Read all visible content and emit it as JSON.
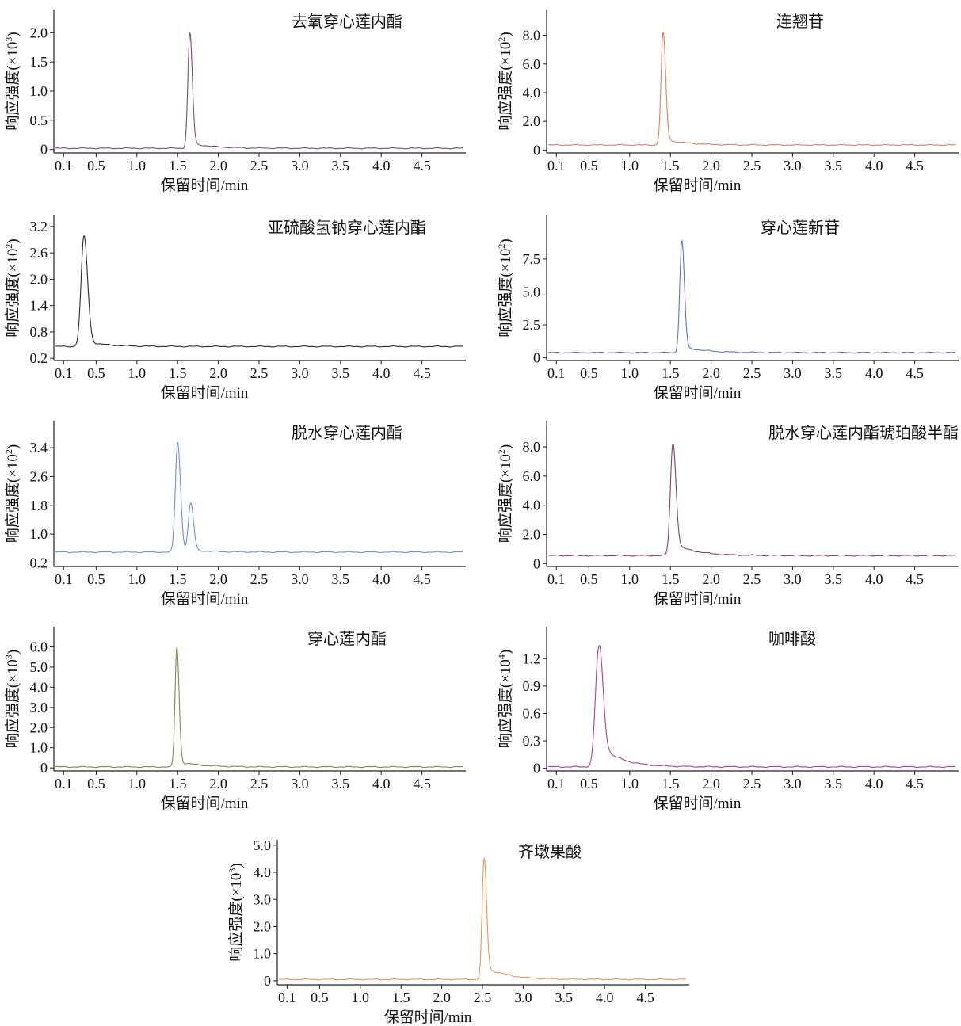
{
  "x_axis_label": "保留时间/min",
  "x_ticks": [
    0.1,
    0.5,
    1.0,
    1.5,
    2.0,
    2.5,
    3.0,
    3.5,
    4.0,
    4.5
  ],
  "x_tick_labels": [
    "0.1",
    "0.5",
    "1.0",
    "1.5",
    "2.0",
    "2.5",
    "3.0",
    "3.5",
    "4.0",
    "4.5"
  ],
  "x_range": [
    0,
    5.0
  ],
  "chart_data": [
    {
      "type": "line",
      "title": "去氧穿心莲内酯",
      "ylabel": "响应强度(×10³)",
      "ylabel_parts": [
        "响应强度(×10",
        "3",
        ")"
      ],
      "xlabel": "保留时间/min",
      "color": "#7a4a86",
      "yticks": [
        0,
        0.5,
        1.0,
        1.5,
        2.0
      ],
      "ytick_labels": [
        "0",
        "0.5",
        "1.0",
        "1.5",
        "2.0"
      ],
      "ylim": [
        -0.06,
        2.4
      ],
      "baseline": 0.02,
      "peaks": [
        {
          "x": 1.65,
          "y": 2.0,
          "w": 0.024,
          "tail": 0.05
        }
      ]
    },
    {
      "type": "line",
      "title": "连翘苷",
      "ylabel": "响应强度(×10²)",
      "ylabel_parts": [
        "响应强度(×10",
        "2",
        ")"
      ],
      "xlabel": "保留时间/min",
      "color": "#e08060",
      "yticks": [
        0,
        2.0,
        4.0,
        6.0,
        8.0
      ],
      "ytick_labels": [
        "0",
        "2.0",
        "4.0",
        "6.0",
        "8.0"
      ],
      "ylim": [
        -0.2,
        9.8
      ],
      "baseline": 0.35,
      "peaks": [
        {
          "x": 1.41,
          "y": 8.2,
          "w": 0.025,
          "tail": 0.06
        }
      ]
    },
    {
      "type": "line",
      "title": "亚硫酸氢钠穿心莲内酯",
      "ylabel": "响应强度(×10²)",
      "ylabel_parts": [
        "响应强度(×10",
        "2",
        ")"
      ],
      "xlabel": "保留时间/min",
      "color": "#2a2a2a",
      "yticks": [
        0.2,
        0.8,
        1.4,
        2.0,
        2.6,
        3.2
      ],
      "ytick_labels": [
        "0.2",
        "0.8",
        "1.4",
        "2.0",
        "2.6",
        "3.2"
      ],
      "ylim": [
        0.15,
        3.45
      ],
      "baseline": 0.47,
      "peaks": [
        {
          "x": 0.35,
          "y": 2.98,
          "w": 0.035,
          "tail": 0.05
        }
      ]
    },
    {
      "type": "line",
      "title": "穿心莲新苷",
      "ylabel": "响应强度(×10²)",
      "ylabel_parts": [
        "响应强度(×10",
        "2",
        ")"
      ],
      "xlabel": "保留时间/min",
      "color": "#5b78c2",
      "yticks": [
        0,
        2.5,
        5.0,
        7.5
      ],
      "ytick_labels": [
        "0",
        "2.5",
        "5.0",
        "7.5"
      ],
      "ylim": [
        -0.2,
        10.8
      ],
      "baseline": 0.4,
      "peaks": [
        {
          "x": 1.64,
          "y": 8.9,
          "w": 0.025,
          "tail": 0.06
        }
      ]
    },
    {
      "type": "line",
      "title": "脱水穿心莲内酯",
      "ylabel": "响应强度(×10²)",
      "ylabel_parts": [
        "响应强度(×10",
        "2",
        ")"
      ],
      "xlabel": "保留时间/min",
      "color": "#6f8fcf",
      "yticks": [
        0.2,
        1.0,
        1.8,
        2.6,
        3.4
      ],
      "ytick_labels": [
        "0.2",
        "1.0",
        "1.8",
        "2.6",
        "3.4"
      ],
      "ylim": [
        0.1,
        4.15
      ],
      "baseline": 0.5,
      "peaks": [
        {
          "x": 1.5,
          "y": 3.55,
          "w": 0.028,
          "tail": 0.02
        },
        {
          "x": 1.66,
          "y": 1.83,
          "w": 0.028,
          "tail": 0.02
        }
      ]
    },
    {
      "type": "line",
      "title": "脱水穿心莲内酯琥珀酸半酯",
      "ylabel": "响应强度(×10²)",
      "ylabel_parts": [
        "响应强度(×10",
        "2",
        ")"
      ],
      "xlabel": "保留时间/min",
      "color": "#8a3e6c",
      "yticks": [
        0,
        2.0,
        4.0,
        6.0,
        8.0
      ],
      "ytick_labels": [
        "0",
        "2.0",
        "4.0",
        "6.0",
        "8.0"
      ],
      "ylim": [
        -0.2,
        9.8
      ],
      "baseline": 0.55,
      "peaks": [
        {
          "x": 1.53,
          "y": 8.2,
          "w": 0.03,
          "tail": 0.12
        }
      ]
    },
    {
      "type": "line",
      "title": "穿心莲内酯",
      "ylabel": "响应强度(×10³)",
      "ylabel_parts": [
        "响应强度(×10",
        "3",
        ")"
      ],
      "xlabel": "保留时间/min",
      "color": "#7d8a4a",
      "yticks": [
        0,
        1.0,
        2.0,
        3.0,
        4.0,
        5.0,
        6.0
      ],
      "ytick_labels": [
        "0",
        "1.0",
        "2.0",
        "3.0",
        "4.0",
        "5.0",
        "6.0"
      ],
      "ylim": [
        -0.15,
        7.0
      ],
      "baseline": 0.05,
      "peaks": [
        {
          "x": 1.49,
          "y": 6.0,
          "w": 0.022,
          "tail": 0.05
        }
      ]
    },
    {
      "type": "line",
      "title": "咖啡酸",
      "ylabel": "响应强度(×10⁴)",
      "ylabel_parts": [
        "响应强度(×10",
        "4",
        ")"
      ],
      "xlabel": "保留时间/min",
      "color": "#b33a8e",
      "yticks": [
        0,
        0.3,
        0.6,
        0.9,
        1.2
      ],
      "ytick_labels": [
        "0",
        "0.3",
        "0.6",
        "0.9",
        "1.2"
      ],
      "ylim": [
        -0.03,
        1.55
      ],
      "baseline": 0.015,
      "peaks": [
        {
          "x": 0.62,
          "y": 1.32,
          "w": 0.04,
          "tail": 0.2
        }
      ]
    },
    {
      "type": "line",
      "title": "齐墩果酸",
      "ylabel": "响应强度(×10³)",
      "ylabel_parts": [
        "响应强度(×10",
        "3",
        ")"
      ],
      "xlabel": "保留时间/min",
      "color": "#e8965a",
      "yticks": [
        0,
        1.0,
        2.0,
        3.0,
        4.0,
        5.0
      ],
      "ytick_labels": [
        "0",
        "1.0",
        "2.0",
        "3.0",
        "4.0",
        "5.0"
      ],
      "ylim": [
        -0.15,
        5.2
      ],
      "baseline": 0.05,
      "peaks": [
        {
          "x": 2.52,
          "y": 4.5,
          "w": 0.024,
          "tail": 0.12
        }
      ]
    }
  ]
}
